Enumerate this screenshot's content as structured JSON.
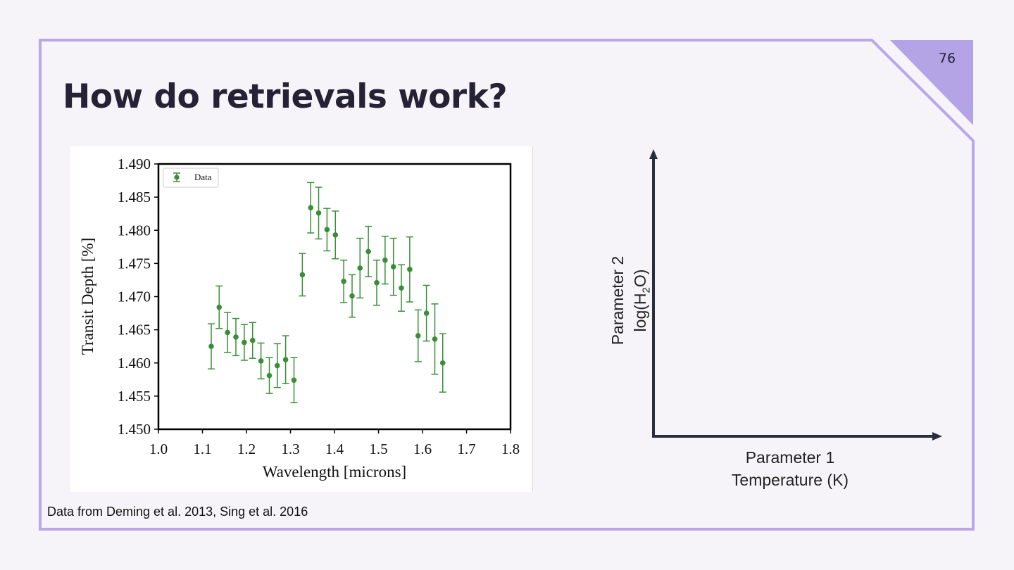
{
  "slide": {
    "title": "How do retrievals work?",
    "page_number": "76",
    "caption": "Data from Deming et al. 2013, Sing et al. 2016",
    "accent_color": "#b4a4e6",
    "frame_color": "#b8a8e8"
  },
  "chart_data": {
    "type": "scatter",
    "xlabel": "Wavelength [microns]",
    "ylabel": "Transit Depth [%]",
    "xlim": [
      1.0,
      1.8
    ],
    "ylim": [
      1.45,
      1.49
    ],
    "x_ticks": [
      "1.0",
      "1.1",
      "1.2",
      "1.3",
      "1.4",
      "1.5",
      "1.6",
      "1.7",
      "1.8"
    ],
    "y_ticks": [
      "1.450",
      "1.455",
      "1.460",
      "1.465",
      "1.470",
      "1.475",
      "1.480",
      "1.485",
      "1.490"
    ],
    "grid": false,
    "legend": {
      "position": "top-left",
      "entries": [
        "Data"
      ]
    },
    "series": [
      {
        "name": "Data",
        "color": "#3a8e38",
        "x": [
          1.12,
          1.138,
          1.157,
          1.176,
          1.195,
          1.214,
          1.233,
          1.252,
          1.27,
          1.289,
          1.308,
          1.327,
          1.346,
          1.364,
          1.383,
          1.402,
          1.421,
          1.44,
          1.458,
          1.477,
          1.496,
          1.515,
          1.534,
          1.552,
          1.571,
          1.59,
          1.609,
          1.628,
          1.646
        ],
        "y": [
          1.4625,
          1.4684,
          1.4646,
          1.4639,
          1.4631,
          1.4634,
          1.4603,
          1.4581,
          1.4596,
          1.4605,
          1.4574,
          1.4733,
          1.4834,
          1.4826,
          1.4801,
          1.4793,
          1.4723,
          1.4701,
          1.4743,
          1.4768,
          1.4721,
          1.4755,
          1.4745,
          1.4713,
          1.4741,
          1.4641,
          1.4675,
          1.4636,
          1.46
        ],
        "err": [
          0.0034,
          0.0032,
          0.003,
          0.0028,
          0.0027,
          0.0027,
          0.0027,
          0.0027,
          0.0033,
          0.0036,
          0.0034,
          0.0032,
          0.0038,
          0.0039,
          0.0032,
          0.0036,
          0.0032,
          0.0032,
          0.0045,
          0.0038,
          0.0034,
          0.0036,
          0.0043,
          0.0035,
          0.0049,
          0.0039,
          0.0042,
          0.0053,
          0.0044
        ]
      }
    ]
  },
  "diagram": {
    "x_param": "Parameter 1",
    "x_param_detail": "Temperature (K)",
    "y_param": "Parameter 2",
    "y_param_detail_prefix": "log(H",
    "y_param_detail_sub": "2",
    "y_param_detail_suffix": "O)",
    "axis_color": "#2a2d3a"
  }
}
